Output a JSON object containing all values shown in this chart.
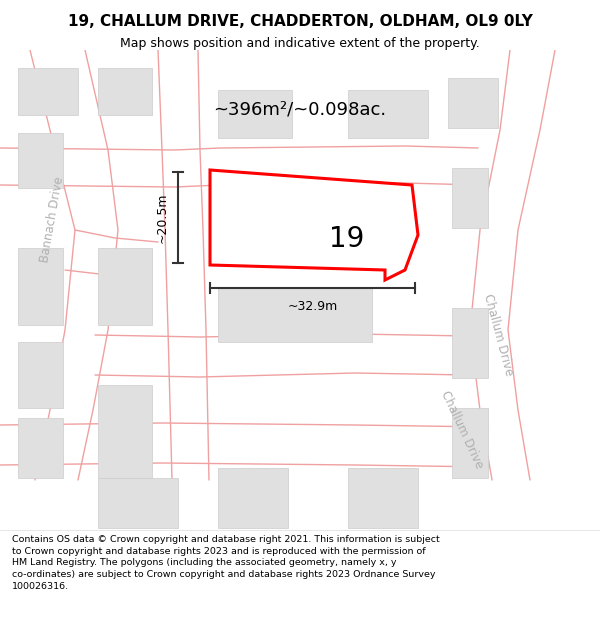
{
  "title_line1": "19, CHALLUM DRIVE, CHADDERTON, OLDHAM, OL9 0LY",
  "title_line2": "Map shows position and indicative extent of the property.",
  "footer_wrapped": "Contains OS data © Crown copyright and database right 2021. This information is subject\nto Crown copyright and database rights 2023 and is reproduced with the permission of\nHM Land Registry. The polygons (including the associated geometry, namely x, y\nco-ordinates) are subject to Crown copyright and database rights 2023 Ordnance Survey\n100026316.",
  "area_text": "~396m²/~0.098ac.",
  "label_number": "19",
  "dim_width": "~32.9m",
  "dim_height": "~20.5m",
  "road_label_right_top": "Challum Drive",
  "road_label_right_bottom": "Challum Drive",
  "road_label_left": "Bannach Drive",
  "map_bg": "#f5f5f5",
  "road_outline_color": "#f0a0a0",
  "building_color": "#e0e0e0",
  "building_stroke": "#cccccc",
  "highlight_color": "#ff0000",
  "dim_color": "#333333",
  "road_label_color": "#b0b0b0"
}
